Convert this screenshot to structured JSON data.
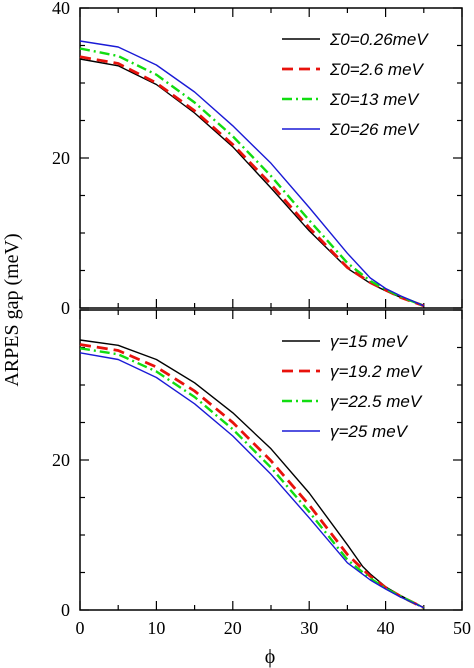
{
  "chart_data": {
    "type": "line",
    "ylabel": "ARPES gap (meV)",
    "xlabel": "ϕ",
    "shared_x_ticks": [
      "0",
      "10",
      "20",
      "30",
      "40",
      "50"
    ],
    "panels": [
      {
        "xlim": [
          0,
          50
        ],
        "ylim": [
          0,
          40
        ],
        "y_ticks": [
          "40",
          "20",
          "0"
        ],
        "legend_position": "top-right",
        "series": [
          {
            "name": "Σ0=0.26meV",
            "color": "#000000",
            "style": "solid",
            "x": [
              0,
              5,
              10,
              15,
              20,
              25,
              30,
              35,
              38,
              40,
              42,
              45
            ],
            "y": [
              33.2,
              32.3,
              29.8,
              26.0,
              21.5,
              16.0,
              10.3,
              5.3,
              3.3,
              2.3,
              1.4,
              0.3
            ]
          },
          {
            "name": "Σ0=2.6 meV",
            "color": "#e8120c",
            "style": "dashed",
            "x": [
              0,
              5,
              10,
              15,
              20,
              25,
              30,
              35,
              38,
              40,
              42,
              45
            ],
            "y": [
              33.5,
              32.6,
              30.0,
              26.3,
              21.8,
              16.5,
              10.7,
              5.4,
              3.4,
              2.4,
              1.4,
              0.3
            ]
          },
          {
            "name": "Σ0=13 meV",
            "color": "#11dd11",
            "style": "dashdot",
            "x": [
              0,
              5,
              10,
              15,
              20,
              25,
              30,
              35,
              38,
              40,
              42,
              45
            ],
            "y": [
              34.6,
              33.6,
              31.1,
              27.4,
              22.9,
              17.6,
              11.7,
              6.0,
              3.6,
              2.5,
              1.5,
              0.3
            ]
          },
          {
            "name": "Σ0=26 meV",
            "color": "#1a1ad6",
            "style": "solid",
            "x": [
              0,
              5,
              10,
              15,
              20,
              25,
              30,
              35,
              38,
              40,
              42,
              45
            ],
            "y": [
              35.6,
              34.8,
              32.4,
              28.8,
              24.3,
              19.3,
              13.4,
              7.3,
              4.0,
              2.6,
              1.6,
              0.3
            ]
          }
        ]
      },
      {
        "xlim": [
          0,
          50
        ],
        "ylim": [
          0,
          40
        ],
        "y_ticks": [
          "20",
          "0"
        ],
        "legend_position": "top-right",
        "series": [
          {
            "name": "γ=15 meV",
            "color": "#000000",
            "style": "solid",
            "x": [
              0,
              5,
              10,
              15,
              20,
              25,
              30,
              35,
              37,
              38,
              40,
              42,
              45
            ],
            "y": [
              36.0,
              35.3,
              33.4,
              30.3,
              26.3,
              21.5,
              15.6,
              8.7,
              5.8,
              4.8,
              3.1,
              1.9,
              0.3
            ]
          },
          {
            "name": "γ=19.2 meV",
            "color": "#e8120c",
            "style": "dashed",
            "x": [
              0,
              5,
              10,
              15,
              20,
              25,
              30,
              35,
              38,
              40,
              42,
              45
            ],
            "y": [
              35.4,
              34.6,
              32.4,
              29.2,
              25.0,
              19.9,
              14.0,
              7.4,
              4.5,
              3.0,
              1.8,
              0.3
            ]
          },
          {
            "name": "γ=22.5 meV",
            "color": "#11dd11",
            "style": "dashdot",
            "x": [
              0,
              5,
              10,
              15,
              20,
              25,
              30,
              35,
              38,
              40,
              42,
              45
            ],
            "y": [
              34.9,
              34.1,
              31.8,
              28.4,
              24.1,
              19.0,
              13.1,
              6.7,
              4.2,
              2.9,
              1.8,
              0.3
            ]
          },
          {
            "name": "γ=25 meV",
            "color": "#1a1ad6",
            "style": "solid",
            "x": [
              0,
              5,
              10,
              15,
              20,
              25,
              30,
              35,
              38,
              40,
              42,
              45
            ],
            "y": [
              34.3,
              33.4,
              31.0,
              27.5,
              23.2,
              18.1,
              12.3,
              6.3,
              4.0,
              2.8,
              1.7,
              0.3
            ]
          }
        ]
      }
    ]
  }
}
